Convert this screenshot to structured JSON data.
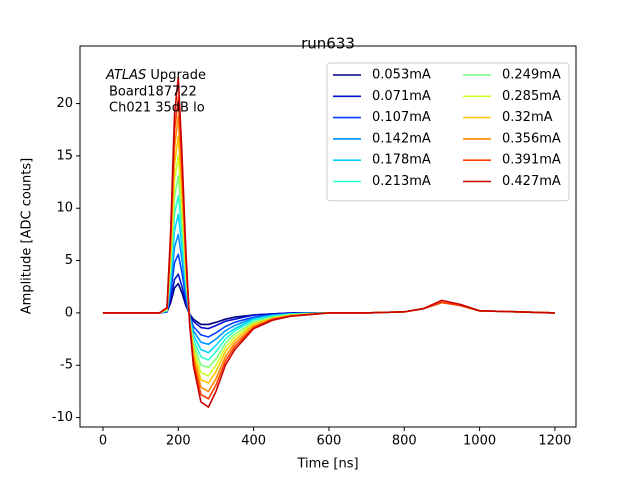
{
  "chart_data": {
    "type": "line",
    "title": "run633",
    "xlabel": "Time [ns]",
    "ylabel": "Amplitude [ADC counts]",
    "annotation": {
      "italic": "ATLAS",
      "rest": "Upgrade",
      "lines": [
        "Board187722",
        "Ch021 35dB lo"
      ]
    },
    "xlim": [
      -61,
      1256
    ],
    "ylim": [
      -10.9,
      25.5
    ],
    "xticks": [
      0,
      200,
      400,
      600,
      800,
      1000,
      1200
    ],
    "yticks": [
      -10,
      -5,
      0,
      5,
      10,
      15,
      20
    ],
    "grid": false,
    "legend": {
      "loc": "upper right",
      "ncol": 2
    },
    "x": [
      0,
      50,
      100,
      150,
      170,
      180,
      190,
      200,
      210,
      220,
      230,
      240,
      260,
      280,
      300,
      325,
      350,
      400,
      450,
      500,
      600,
      700,
      800,
      850,
      900,
      950,
      1000,
      1200
    ],
    "series": [
      {
        "name": "0.053mA",
        "color": "#00007f",
        "values": [
          0,
          0,
          0,
          0,
          0.1,
          1.0,
          2.4,
          2.8,
          1.9,
          0.7,
          -0.1,
          -0.6,
          -1.1,
          -1.1,
          -0.9,
          -0.6,
          -0.4,
          -0.2,
          -0.1,
          0,
          0,
          0,
          0.1,
          0.4,
          1,
          0.7,
          0.2,
          0
        ]
      },
      {
        "name": "0.071mA",
        "color": "#0010d0",
        "values": [
          0,
          0,
          0,
          0,
          0.1,
          1.3,
          3.2,
          3.7,
          2.5,
          1.0,
          -0.2,
          -0.8,
          -1.4,
          -1.5,
          -1.2,
          -0.8,
          -0.6,
          -0.2,
          -0.1,
          0,
          0,
          0,
          0.1,
          0.4,
          1,
          0.7,
          0.2,
          0
        ]
      },
      {
        "name": "0.107mA",
        "color": "#0040ff",
        "values": [
          0,
          0,
          0,
          0,
          0.1,
          2.0,
          4.8,
          5.6,
          3.8,
          1.5,
          -0.3,
          -1.3,
          -2.1,
          -2.3,
          -1.9,
          -1.3,
          -0.9,
          -0.4,
          -0.2,
          -0.1,
          0,
          0,
          0.1,
          0.4,
          1,
          0.7,
          0.2,
          0
        ]
      },
      {
        "name": "0.142mA",
        "color": "#0090ff",
        "values": [
          0,
          0,
          0,
          0,
          0.2,
          2.7,
          6.3,
          7.5,
          5.0,
          2.0,
          -0.3,
          -1.7,
          -2.8,
          -3.0,
          -2.5,
          -1.7,
          -1.2,
          -0.5,
          -0.2,
          -0.1,
          0,
          0,
          0.1,
          0.4,
          1,
          0.7,
          0.2,
          0
        ]
      },
      {
        "name": "0.178mA",
        "color": "#00d4ff",
        "values": [
          0,
          0,
          0,
          0,
          0.2,
          3.3,
          7.9,
          9.4,
          6.3,
          2.5,
          -0.4,
          -2.1,
          -3.5,
          -3.8,
          -3.1,
          -2.1,
          -1.5,
          -0.6,
          -0.3,
          -0.1,
          0,
          0,
          0.1,
          0.4,
          1,
          0.7,
          0.2,
          0
        ]
      },
      {
        "name": "0.213mA",
        "color": "#29ffce",
        "values": [
          0,
          0,
          0,
          0,
          0.2,
          4.0,
          9.5,
          11.2,
          7.5,
          3.0,
          -0.5,
          -2.5,
          -4.2,
          -4.5,
          -3.7,
          -2.5,
          -1.7,
          -0.7,
          -0.3,
          -0.1,
          0,
          0,
          0.1,
          0.4,
          1,
          0.7,
          0.2,
          0
        ]
      },
      {
        "name": "0.249mA",
        "color": "#7dff7a",
        "values": [
          0,
          0,
          0,
          0,
          0.3,
          4.7,
          11.1,
          13.1,
          8.7,
          3.5,
          -0.6,
          -2.9,
          -5.0,
          -5.2,
          -4.4,
          -2.9,
          -2.0,
          -0.9,
          -0.4,
          -0.2,
          0,
          0,
          0.1,
          0.4,
          1,
          0.7,
          0.2,
          0
        ]
      },
      {
        "name": "0.285mA",
        "color": "#ceff29",
        "values": [
          0,
          0,
          0,
          0,
          0.3,
          5.3,
          12.7,
          15.0,
          10.0,
          4.0,
          -0.7,
          -3.3,
          -5.7,
          -6.0,
          -5.0,
          -3.3,
          -2.3,
          -1.0,
          -0.5,
          -0.2,
          0,
          0,
          0.1,
          0.4,
          1,
          0.7,
          0.2,
          0
        ]
      },
      {
        "name": "0.32mA",
        "color": "#ffc400",
        "values": [
          0,
          0,
          0,
          0,
          0.4,
          6.0,
          14.2,
          16.9,
          11.2,
          4.5,
          -0.7,
          -3.7,
          -6.4,
          -6.7,
          -5.6,
          -3.7,
          -2.6,
          -1.1,
          -0.5,
          -0.2,
          0,
          0,
          0.1,
          0.4,
          1,
          0.7,
          0.2,
          0
        ]
      },
      {
        "name": "0.356mA",
        "color": "#ff8600",
        "values": [
          0,
          0,
          0,
          0,
          0.4,
          6.7,
          15.8,
          18.8,
          12.5,
          5.0,
          -0.8,
          -4.2,
          -7.1,
          -7.5,
          -6.3,
          -4.2,
          -2.9,
          -1.3,
          -0.6,
          -0.3,
          0,
          0,
          0.1,
          0.4,
          1,
          0.7,
          0.2,
          0
        ]
      },
      {
        "name": "0.391mA",
        "color": "#ff3b00",
        "values": [
          0,
          0,
          0,
          0,
          0.5,
          7.3,
          17.4,
          20.6,
          13.7,
          5.5,
          -0.9,
          -4.6,
          -7.8,
          -8.2,
          -6.9,
          -4.6,
          -3.2,
          -1.4,
          -0.6,
          -0.3,
          0,
          0,
          0.1,
          0.4,
          1,
          0.7,
          0.2,
          0
        ]
      },
      {
        "name": "0.427mA",
        "color": "#c80000",
        "values": [
          0,
          0,
          0,
          0,
          0.5,
          8,
          19,
          22.5,
          15,
          6,
          -1,
          -5,
          -8.5,
          -9,
          -7.5,
          -5,
          -3.5,
          -1.5,
          -0.7,
          -0.3,
          0,
          0,
          0.1,
          0.4,
          1.2,
          0.8,
          0.2,
          0
        ]
      }
    ]
  }
}
